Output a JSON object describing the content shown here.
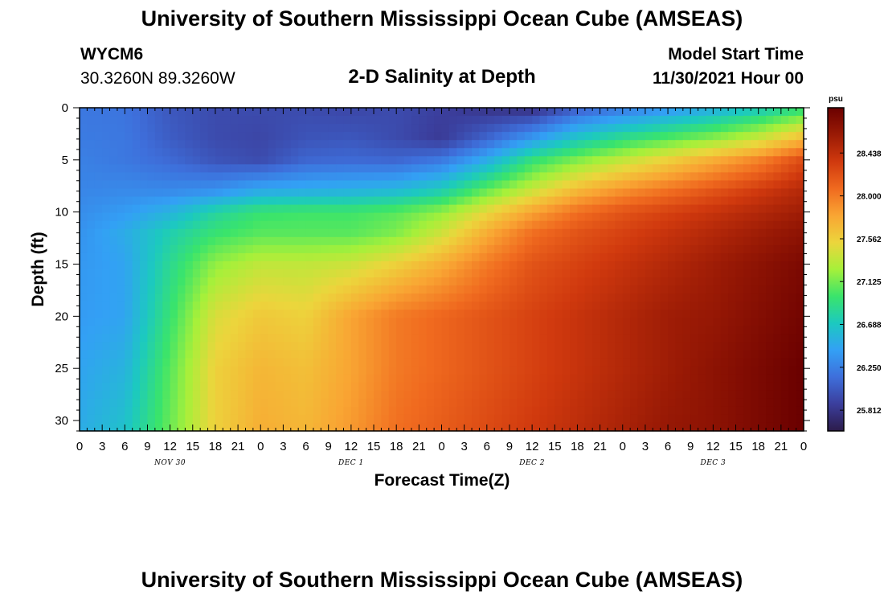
{
  "header": {
    "title": "University of Southern Mississippi Ocean Cube (AMSEAS)",
    "station": "WYCM6",
    "coordinates": "30.3260N  89.3260W",
    "subtitle": "2-D Salinity at Depth",
    "model_start_label": "Model Start Time",
    "model_start_value": "11/30/2021 Hour 00",
    "repeated_title": "University of Southern Mississippi Ocean Cube (AMSEAS)"
  },
  "chart_data": {
    "type": "heatmap",
    "title": "2-D Salinity at Depth",
    "xlabel": "Forecast Time(Z)",
    "ylabel": "Depth (ft)",
    "x_tick_labels": [
      "0",
      "3",
      "6",
      "9",
      "12",
      "15",
      "18",
      "21",
      "0",
      "3",
      "6",
      "9",
      "12",
      "15",
      "18",
      "21",
      "0",
      "3",
      "6",
      "9",
      "12",
      "15",
      "18",
      "21",
      "0",
      "3",
      "6",
      "9",
      "12",
      "15",
      "18",
      "21",
      "0"
    ],
    "x_range_hours": [
      0,
      96
    ],
    "day_labels": [
      {
        "label": "NOV 30",
        "hour": 12
      },
      {
        "label": "DEC 1",
        "hour": 36
      },
      {
        "label": "DEC 2",
        "hour": 60
      },
      {
        "label": "DEC 3",
        "hour": 84
      }
    ],
    "y_tick_labels": [
      "0",
      "5",
      "10",
      "15",
      "20",
      "25",
      "30"
    ],
    "y_range_ft": [
      0,
      31
    ],
    "y_reversed": true,
    "colorbar": {
      "unit": "psu",
      "min": 25.6,
      "max": 28.9,
      "tick_values": [
        28.438,
        28.0,
        27.562,
        27.125,
        26.688,
        26.25,
        25.812
      ],
      "tick_labels": [
        "28.438",
        "28.000",
        "27.562",
        "27.125",
        "26.688",
        "26.250",
        "25.812"
      ],
      "colors": [
        "#2c1b4a",
        "#3b3e9c",
        "#3e6fdb",
        "#33a0f5",
        "#1cc9c0",
        "#3ae46b",
        "#a6f03a",
        "#ecd53c",
        "#f9a533",
        "#f06a1f",
        "#d0390e",
        "#9a1a05",
        "#6a0000"
      ]
    },
    "salinity_grid": {
      "hours": [
        0,
        6,
        12,
        18,
        24,
        30,
        36,
        42,
        48,
        54,
        60,
        66,
        72,
        78,
        84,
        90,
        96
      ],
      "depths_ft": [
        0,
        3,
        5,
        8,
        10,
        12,
        15,
        20,
        25,
        31
      ],
      "values": [
        [
          26.2,
          26.18,
          26.02,
          25.95,
          25.95,
          25.95,
          25.92,
          25.95,
          25.88,
          25.8,
          25.76,
          26.05,
          26.2,
          26.35,
          26.5,
          26.68,
          26.9
        ],
        [
          26.22,
          26.2,
          26.05,
          25.95,
          25.92,
          26.0,
          26.02,
          25.95,
          25.85,
          26.1,
          26.4,
          26.7,
          26.9,
          27.05,
          27.2,
          27.4,
          27.7
        ],
        [
          26.25,
          26.2,
          26.12,
          26.0,
          25.95,
          26.1,
          26.12,
          26.1,
          26.2,
          26.5,
          26.92,
          27.15,
          27.35,
          27.55,
          27.75,
          27.95,
          28.25
        ],
        [
          26.28,
          26.3,
          26.3,
          26.35,
          26.5,
          26.52,
          26.55,
          26.6,
          26.75,
          27.1,
          27.4,
          27.7,
          27.9,
          28.05,
          28.2,
          28.35,
          28.5
        ],
        [
          26.32,
          26.4,
          26.55,
          26.8,
          26.95,
          26.98,
          26.98,
          27.05,
          27.2,
          27.5,
          27.8,
          28.05,
          28.2,
          28.3,
          28.4,
          28.5,
          28.6
        ],
        [
          26.35,
          26.5,
          26.75,
          26.95,
          27.05,
          27.05,
          27.05,
          27.15,
          27.4,
          27.75,
          28.05,
          28.2,
          28.3,
          28.4,
          28.5,
          28.6,
          28.7
        ],
        [
          26.38,
          26.45,
          26.85,
          27.2,
          27.35,
          27.35,
          27.4,
          27.55,
          27.75,
          28.0,
          28.2,
          28.3,
          28.4,
          28.5,
          28.6,
          28.7,
          28.8
        ],
        [
          26.4,
          26.45,
          26.95,
          27.45,
          27.6,
          27.55,
          27.8,
          28.0,
          28.1,
          28.2,
          28.3,
          28.4,
          28.5,
          28.6,
          28.65,
          28.75,
          28.85
        ],
        [
          26.45,
          26.55,
          27.05,
          27.55,
          27.7,
          27.65,
          27.8,
          28.0,
          28.1,
          28.2,
          28.3,
          28.4,
          28.5,
          28.6,
          28.7,
          28.8,
          28.9
        ],
        [
          26.5,
          26.65,
          27.1,
          27.55,
          27.75,
          27.7,
          27.85,
          28.05,
          28.15,
          28.25,
          28.35,
          28.45,
          28.55,
          28.65,
          28.7,
          28.8,
          28.9
        ]
      ]
    }
  }
}
